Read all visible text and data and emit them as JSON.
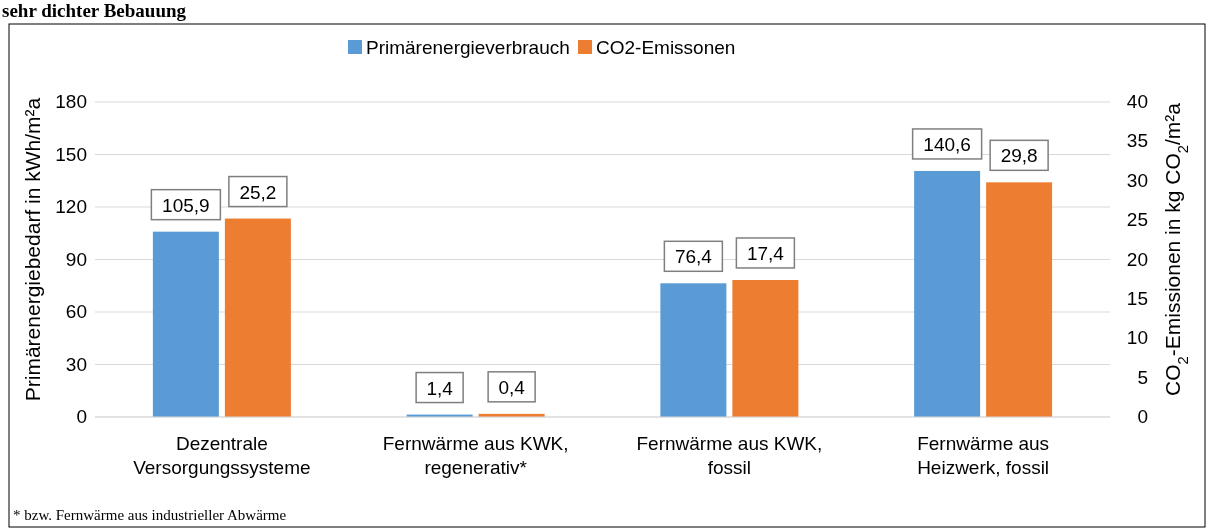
{
  "chart_data": {
    "type": "bar",
    "title": "sehr dichter Bebauung",
    "categories": [
      "Dezentrale\nVersorgungssysteme",
      "Fernwärme aus KWK,\nregenerativ*",
      "Fernwärme aus KWK,\nfossil",
      "Fernwärme aus\nHeizwerk, fossil"
    ],
    "series": [
      {
        "name": "Primärenergieverbrauch",
        "color": "#5b9bd5",
        "values": [
          105.9,
          1.4,
          76.4,
          140.6
        ],
        "value_labels": [
          "105,9",
          "1,4",
          "76,4",
          "140,6"
        ]
      },
      {
        "name": "CO2-Emissonen",
        "color": "#ed7d31",
        "axis": "y2",
        "values": [
          25.2,
          0.4,
          17.4,
          29.8
        ],
        "value_labels": [
          "25,2",
          "0,4",
          "17,4",
          "29,8"
        ]
      }
    ],
    "ylabel": "Primärenergiebedarf in kWh/m²a",
    "y2label": "CO$_{2}$-Emissionen in kg CO$_{2}$/m²a",
    "ylim": [
      0,
      180
    ],
    "yticks": [
      0,
      30,
      60,
      90,
      120,
      150,
      180
    ],
    "y2lim": [
      0,
      40
    ],
    "y2ticks": [
      0,
      5,
      10,
      15,
      20,
      25,
      30,
      35,
      40
    ],
    "grid": "y",
    "legend": "top",
    "annotations": [
      "* bzw. Fernwärme aus industrieller Abwärme"
    ]
  }
}
